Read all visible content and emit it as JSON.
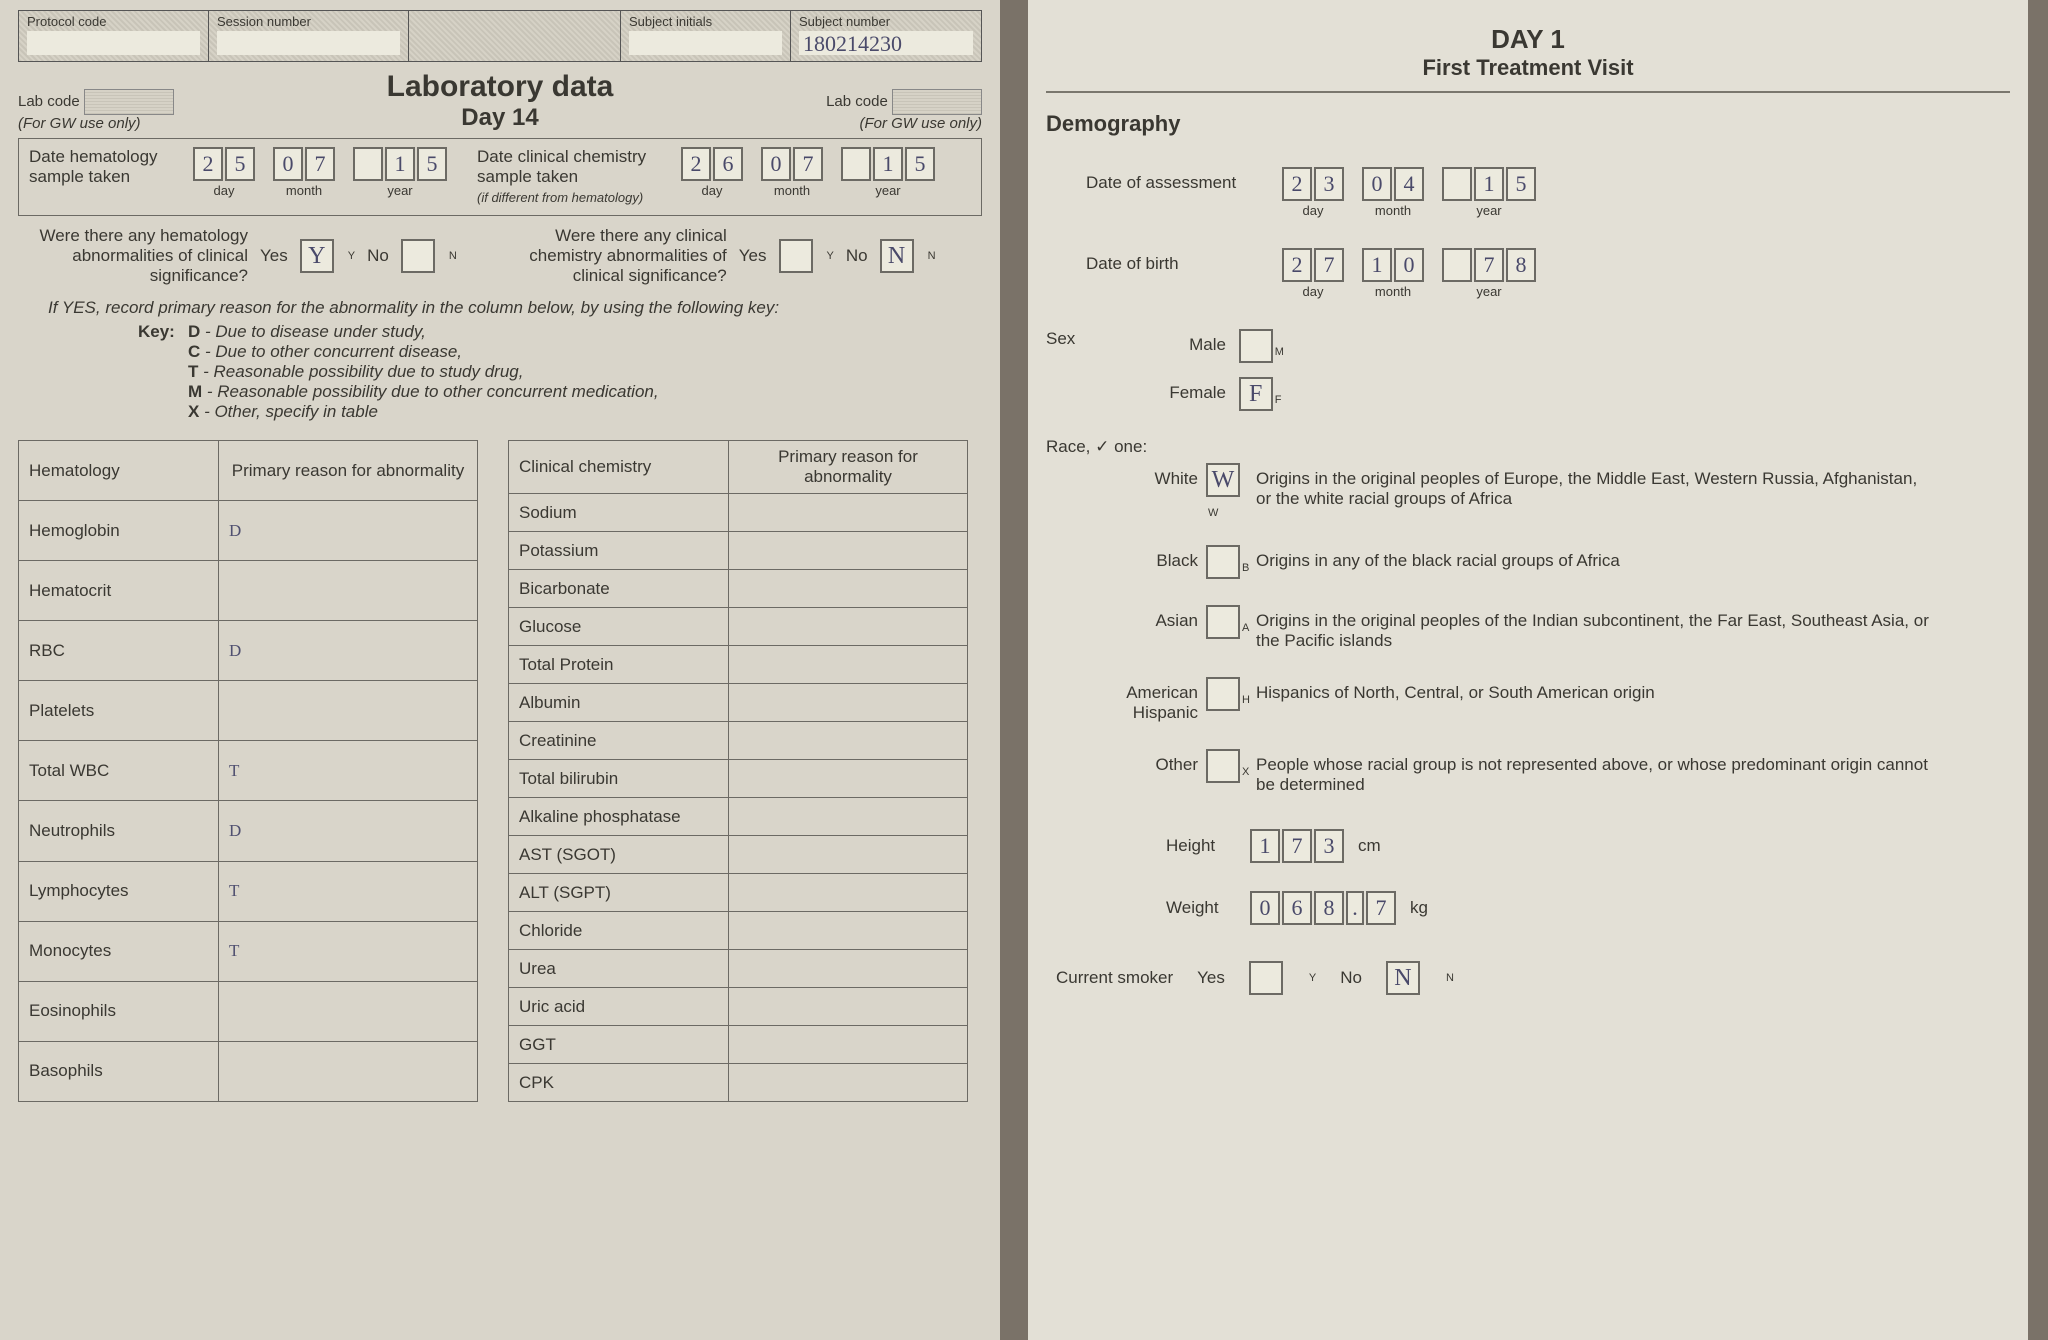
{
  "colors": {
    "page_bg": "#d9d5ca",
    "page_bg_right": "#e3e0d6",
    "border": "#6c6a64",
    "text": "#3a3832",
    "handwriting": "#505070"
  },
  "left": {
    "header": {
      "protocol_label": "Protocol code",
      "session_label": "Session number",
      "subject_initials_label": "Subject initials",
      "subject_number_label": "Subject number",
      "subject_number_value": "180214230"
    },
    "title": "Laboratory data",
    "subtitle": "Day 14",
    "labcode_label": "Lab code",
    "gw_use": "(For GW use only)",
    "hema_date_label": "Date hematology sample taken",
    "chem_date_label": "Date clinical chemistry sample taken",
    "chem_date_note": "(if different from hematology)",
    "date_sublabels": [
      "day",
      "month",
      "year"
    ],
    "hema_date": [
      "2",
      "5",
      "0",
      "7",
      "1",
      "5"
    ],
    "chem_date": [
      "2",
      "6",
      "0",
      "7",
      "1",
      "5"
    ],
    "hema_q": "Were there any hematology abnormalities of clinical significance?",
    "chem_q": "Were there any clinical chemistry abnormalities of clinical significance?",
    "yes": "Yes",
    "no": "No",
    "hema_yes_mark": "Y",
    "hema_no_mark": "",
    "chem_yes_mark": "",
    "chem_no_mark": "N",
    "ifyes": "If YES, record primary reason for the abnormality in the column below, by using the following key:",
    "key_label": "Key:",
    "keys": [
      {
        "k": "D",
        "t": "Due to disease under study,"
      },
      {
        "k": "C",
        "t": "Due to other concurrent disease,"
      },
      {
        "k": "T",
        "t": "Reasonable possibility due to study drug,"
      },
      {
        "k": "M",
        "t": "Reasonable possibility due to other concurrent medication,"
      },
      {
        "k": "X",
        "t": "Other, specify in table"
      }
    ],
    "hematology_header": "Hematology",
    "reason_header": "Primary reason for abnormality",
    "chemistry_header": "Clinical chemistry",
    "hematology_rows": [
      {
        "name": "Hemoglobin",
        "reason": "D"
      },
      {
        "name": "Hematocrit",
        "reason": ""
      },
      {
        "name": "RBC",
        "reason": "D"
      },
      {
        "name": "Platelets",
        "reason": ""
      },
      {
        "name": "Total WBC",
        "reason": "T"
      },
      {
        "name": "Neutrophils",
        "reason": "D"
      },
      {
        "name": "Lymphocytes",
        "reason": "T"
      },
      {
        "name": "Monocytes",
        "reason": "T"
      },
      {
        "name": "Eosinophils",
        "reason": ""
      },
      {
        "name": "Basophils",
        "reason": ""
      }
    ],
    "chemistry_rows": [
      {
        "name": "Sodium",
        "reason": ""
      },
      {
        "name": "Potassium",
        "reason": ""
      },
      {
        "name": "Bicarbonate",
        "reason": ""
      },
      {
        "name": "Glucose",
        "reason": ""
      },
      {
        "name": "Total Protein",
        "reason": ""
      },
      {
        "name": "Albumin",
        "reason": ""
      },
      {
        "name": "Creatinine",
        "reason": ""
      },
      {
        "name": "Total bilirubin",
        "reason": ""
      },
      {
        "name": "Alkaline phosphatase",
        "reason": ""
      },
      {
        "name": "AST (SGOT)",
        "reason": ""
      },
      {
        "name": "ALT (SGPT)",
        "reason": ""
      },
      {
        "name": "Chloride",
        "reason": ""
      },
      {
        "name": "Urea",
        "reason": ""
      },
      {
        "name": "Uric acid",
        "reason": ""
      },
      {
        "name": "GGT",
        "reason": ""
      },
      {
        "name": "CPK",
        "reason": ""
      }
    ]
  },
  "right": {
    "title": "DAY 1",
    "subtitle": "First Treatment Visit",
    "section": "Demography",
    "doa_label": "Date of assessment",
    "doa": [
      "2",
      "3",
      "0",
      "4",
      "1",
      "5"
    ],
    "dob_label": "Date of birth",
    "dob": [
      "2",
      "7",
      "1",
      "0",
      "7",
      "8"
    ],
    "date_sublabels": [
      "day",
      "month",
      "year"
    ],
    "sex_label": "Sex",
    "male_label": "Male",
    "female_label": "Female",
    "male_mark": "",
    "female_mark": "F",
    "race_label": "Race, ✓ one:",
    "races": [
      {
        "label": "White",
        "mark": "W",
        "sub": "W",
        "desc": "Origins in the original peoples of Europe, the Middle East, Western Russia, Afghanistan, or the white racial groups of Africa"
      },
      {
        "label": "Black",
        "mark": "",
        "sub": "B",
        "desc": "Origins in any of the black racial groups of Africa"
      },
      {
        "label": "Asian",
        "mark": "",
        "sub": "A",
        "desc": "Origins in the original peoples of the Indian subcontinent, the Far East, Southeast Asia, or the Pacific islands"
      },
      {
        "label": "American Hispanic",
        "mark": "",
        "sub": "H",
        "desc": "Hispanics of North, Central, or South American origin"
      },
      {
        "label": "Other",
        "mark": "",
        "sub": "X",
        "desc": "People whose racial group is not represented above, or whose predominant origin cannot be determined"
      }
    ],
    "height_label": "Height",
    "height": [
      "1",
      "7",
      "3"
    ],
    "height_unit": "cm",
    "weight_label": "Weight",
    "weight": [
      "0",
      "6",
      "8",
      ".",
      "7"
    ],
    "weight_unit": "kg",
    "smoker_label": "Current smoker",
    "yes": "Yes",
    "no": "No",
    "smoker_yes_mark": "",
    "smoker_no_mark": "N"
  }
}
